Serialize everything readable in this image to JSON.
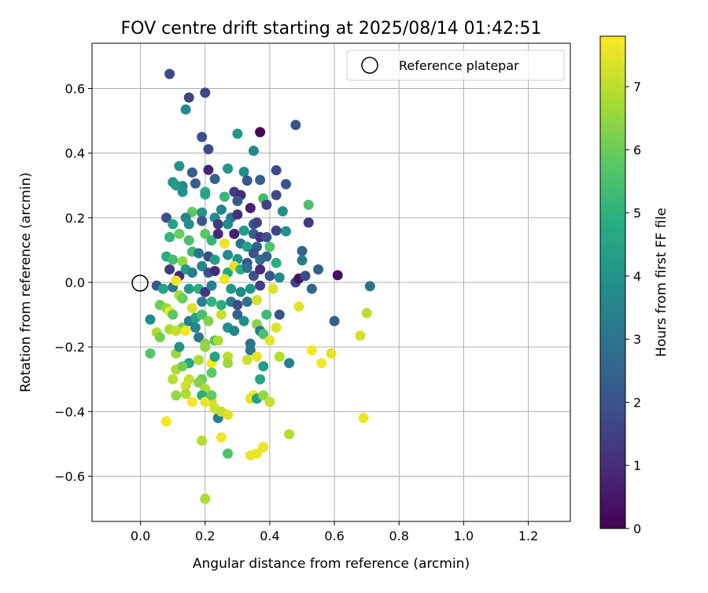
{
  "chart_data": {
    "type": "scatter",
    "title": "FOV centre drift starting at 2025/08/14 01:42:51",
    "xlabel": "Angular distance from reference (arcmin)",
    "ylabel": "Rotation from reference (arcmin)",
    "xlim": [
      -0.15,
      1.33
    ],
    "ylim": [
      -0.74,
      0.74
    ],
    "xticks": [
      0.0,
      0.2,
      0.4,
      0.6,
      0.8,
      1.0,
      1.2
    ],
    "xtick_labels": [
      "0.0",
      "0.2",
      "0.4",
      "0.6",
      "0.8",
      "1.0",
      "1.2"
    ],
    "yticks": [
      -0.6,
      -0.4,
      -0.2,
      0.0,
      0.2,
      0.4,
      0.6
    ],
    "ytick_labels": [
      "−0.6",
      "−0.4",
      "−0.2",
      "0.0",
      "0.2",
      "0.4",
      "0.6"
    ],
    "grid": true,
    "legend": {
      "placement": "top-right",
      "entries": [
        "Reference platepar"
      ]
    },
    "reference_point": {
      "x": 0.0,
      "y": 0.0,
      "label": "Reference platepar"
    },
    "colorbar": {
      "label": "Hours from first FF file",
      "range": [
        0,
        7.8
      ],
      "ticks": [
        0,
        1,
        2,
        3,
        4,
        5,
        6,
        7
      ],
      "colormap": "viridis"
    },
    "points": [
      [
        0.09,
        0.645,
        1.8
      ],
      [
        0.15,
        0.572,
        1.6
      ],
      [
        0.2,
        0.587,
        1.7
      ],
      [
        0.14,
        0.535,
        3.6
      ],
      [
        0.37,
        0.465,
        0.1
      ],
      [
        0.48,
        0.487,
        2.0
      ],
      [
        0.3,
        0.46,
        4.2
      ],
      [
        0.19,
        0.45,
        1.9
      ],
      [
        0.21,
        0.412,
        1.8
      ],
      [
        0.35,
        0.407,
        3.6
      ],
      [
        0.12,
        0.36,
        3.9
      ],
      [
        0.21,
        0.348,
        0.8
      ],
      [
        0.27,
        0.352,
        4.1
      ],
      [
        0.32,
        0.342,
        3.9
      ],
      [
        0.16,
        0.34,
        2.3
      ],
      [
        0.42,
        0.347,
        1.8
      ],
      [
        0.33,
        0.315,
        2.2
      ],
      [
        0.37,
        0.317,
        2.4
      ],
      [
        0.1,
        0.31,
        4.0
      ],
      [
        0.13,
        0.298,
        3.6
      ],
      [
        0.17,
        0.306,
        2.3
      ],
      [
        0.2,
        0.28,
        5.1
      ],
      [
        0.23,
        0.32,
        2.4
      ],
      [
        0.29,
        0.28,
        1.4
      ],
      [
        0.31,
        0.27,
        0.9
      ],
      [
        0.42,
        0.27,
        1.7
      ],
      [
        0.45,
        0.304,
        2.1
      ],
      [
        0.52,
        0.24,
        5.5
      ],
      [
        0.11,
        0.3,
        4.3
      ],
      [
        0.13,
        0.28,
        4.0
      ],
      [
        0.2,
        0.272,
        4.5
      ],
      [
        0.26,
        0.265,
        5.2
      ],
      [
        0.3,
        0.252,
        2.2
      ],
      [
        0.34,
        0.23,
        0.7
      ],
      [
        0.38,
        0.26,
        5.4
      ],
      [
        0.39,
        0.24,
        1.6
      ],
      [
        0.44,
        0.22,
        3.9
      ],
      [
        0.16,
        0.218,
        5.8
      ],
      [
        0.19,
        0.216,
        4.0
      ],
      [
        0.23,
        0.2,
        3.8
      ],
      [
        0.25,
        0.225,
        3.6
      ],
      [
        0.28,
        0.2,
        3.0
      ],
      [
        0.3,
        0.21,
        1.1
      ],
      [
        0.35,
        0.18,
        2.2
      ],
      [
        0.36,
        0.185,
        1.5
      ],
      [
        0.45,
        0.158,
        3.9
      ],
      [
        0.52,
        0.185,
        1.2
      ],
      [
        0.08,
        0.2,
        1.9
      ],
      [
        0.1,
        0.18,
        4.5
      ],
      [
        0.14,
        0.2,
        3.5
      ],
      [
        0.15,
        0.18,
        3.8
      ],
      [
        0.19,
        0.19,
        2.1
      ],
      [
        0.24,
        0.18,
        1.3
      ],
      [
        0.27,
        0.18,
        3.7
      ],
      [
        0.32,
        0.16,
        4.2
      ],
      [
        0.35,
        0.15,
        2.3
      ],
      [
        0.37,
        0.14,
        1.1
      ],
      [
        0.39,
        0.14,
        2.0
      ],
      [
        0.42,
        0.16,
        1.6
      ],
      [
        0.09,
        0.14,
        5.1
      ],
      [
        0.12,
        0.15,
        6.0
      ],
      [
        0.15,
        0.13,
        5.5
      ],
      [
        0.2,
        0.15,
        5.8
      ],
      [
        0.22,
        0.13,
        5.1
      ],
      [
        0.24,
        0.15,
        0.9
      ],
      [
        0.26,
        0.12,
        7.6
      ],
      [
        0.29,
        0.15,
        0.7
      ],
      [
        0.31,
        0.12,
        3.0
      ],
      [
        0.33,
        0.11,
        4.5
      ],
      [
        0.36,
        0.11,
        2.4
      ],
      [
        0.4,
        0.11,
        5.6
      ],
      [
        0.5,
        0.097,
        2.5
      ],
      [
        0.5,
        0.068,
        3.2
      ],
      [
        0.08,
        0.08,
        4.9
      ],
      [
        0.1,
        0.07,
        5.4
      ],
      [
        0.13,
        0.065,
        6.5
      ],
      [
        0.16,
        0.095,
        5.3
      ],
      [
        0.18,
        0.09,
        3.1
      ],
      [
        0.21,
        0.08,
        1.8
      ],
      [
        0.23,
        0.07,
        4.4
      ],
      [
        0.27,
        0.085,
        3.7
      ],
      [
        0.3,
        0.072,
        4.0
      ],
      [
        0.33,
        0.06,
        2.0
      ],
      [
        0.35,
        0.09,
        1.9
      ],
      [
        0.37,
        0.07,
        3.0
      ],
      [
        0.39,
        0.08,
        2.5
      ],
      [
        0.42,
        0.06,
        4.9
      ],
      [
        0.09,
        0.04,
        1.4
      ],
      [
        0.12,
        0.02,
        0.9
      ],
      [
        0.14,
        0.04,
        4.2
      ],
      [
        0.16,
        0.03,
        3.3
      ],
      [
        0.19,
        0.05,
        3.6
      ],
      [
        0.21,
        0.03,
        2.0
      ],
      [
        0.23,
        0.035,
        0.9
      ],
      [
        0.27,
        0.03,
        4.6
      ],
      [
        0.29,
        0.05,
        7.4
      ],
      [
        0.31,
        0.04,
        4.8
      ],
      [
        0.33,
        0.045,
        2.8
      ],
      [
        0.35,
        0.02,
        2.0
      ],
      [
        0.37,
        0.04,
        0.9
      ],
      [
        0.4,
        0.02,
        2.1
      ],
      [
        0.43,
        0.015,
        3.7
      ],
      [
        0.48,
        0.0,
        1.6
      ],
      [
        0.49,
        0.012,
        0.4
      ],
      [
        0.51,
        0.02,
        1.8
      ],
      [
        0.55,
        0.04,
        2.4
      ],
      [
        0.53,
        -0.02,
        2.6
      ],
      [
        0.61,
        0.022,
        0.3
      ],
      [
        0.71,
        -0.012,
        2.9
      ],
      [
        0.05,
        -0.01,
        2.1
      ],
      [
        0.07,
        -0.02,
        4.5
      ],
      [
        0.1,
        -0.015,
        3.1
      ],
      [
        0.11,
        0.005,
        7.6
      ],
      [
        0.15,
        -0.02,
        4.2
      ],
      [
        0.18,
        -0.02,
        4.9
      ],
      [
        0.2,
        -0.03,
        1.2
      ],
      [
        0.22,
        -0.01,
        3.4
      ],
      [
        0.26,
        0.01,
        7.6
      ],
      [
        0.28,
        -0.02,
        4.1
      ],
      [
        0.31,
        -0.03,
        3.7
      ],
      [
        0.34,
        -0.02,
        4.0
      ],
      [
        0.37,
        -0.01,
        1.5
      ],
      [
        0.41,
        -0.02,
        7.4
      ],
      [
        0.06,
        -0.07,
        6.0
      ],
      [
        0.08,
        -0.08,
        6.5
      ],
      [
        0.09,
        -0.09,
        7.7
      ],
      [
        0.12,
        -0.04,
        6.8
      ],
      [
        0.13,
        -0.05,
        6.0
      ],
      [
        0.16,
        -0.08,
        7.4
      ],
      [
        0.19,
        -0.06,
        3.4
      ],
      [
        0.22,
        -0.06,
        5.0
      ],
      [
        0.25,
        -0.07,
        4.9
      ],
      [
        0.28,
        -0.06,
        3.2
      ],
      [
        0.3,
        -0.07,
        1.8
      ],
      [
        0.33,
        -0.06,
        3.0
      ],
      [
        0.36,
        -0.055,
        7.3
      ],
      [
        0.39,
        -0.1,
        5.3
      ],
      [
        0.43,
        -0.1,
        2.0
      ],
      [
        0.49,
        -0.075,
        7.5
      ],
      [
        0.7,
        -0.095,
        7.0
      ],
      [
        0.6,
        -0.12,
        2.3
      ],
      [
        0.03,
        -0.115,
        3.7
      ],
      [
        0.1,
        -0.1,
        5.8
      ],
      [
        0.13,
        -0.14,
        6.2
      ],
      [
        0.15,
        -0.12,
        3.2
      ],
      [
        0.17,
        -0.11,
        4.5
      ],
      [
        0.19,
        -0.1,
        5.5
      ],
      [
        0.21,
        -0.12,
        6.3
      ],
      [
        0.25,
        -0.1,
        7.1
      ],
      [
        0.27,
        -0.14,
        3.9
      ],
      [
        0.3,
        -0.1,
        2.5
      ],
      [
        0.32,
        -0.12,
        3.8
      ],
      [
        0.36,
        -0.13,
        6.4
      ],
      [
        0.37,
        -0.15,
        3.2
      ],
      [
        0.42,
        -0.14,
        7.4
      ],
      [
        0.05,
        -0.155,
        6.9
      ],
      [
        0.06,
        -0.17,
        6.1
      ],
      [
        0.09,
        -0.145,
        6.8
      ],
      [
        0.11,
        -0.15,
        7.1
      ],
      [
        0.14,
        -0.15,
        7.7
      ],
      [
        0.17,
        -0.14,
        3.6
      ],
      [
        0.18,
        -0.17,
        3.0
      ],
      [
        0.2,
        -0.19,
        6.4
      ],
      [
        0.23,
        -0.18,
        5.5
      ],
      [
        0.24,
        -0.18,
        6.8
      ],
      [
        0.29,
        -0.15,
        3.5
      ],
      [
        0.34,
        -0.19,
        2.9
      ],
      [
        0.34,
        -0.21,
        3.1
      ],
      [
        0.38,
        -0.16,
        5.5
      ],
      [
        0.4,
        -0.18,
        7.5
      ],
      [
        0.53,
        -0.21,
        7.7
      ],
      [
        0.59,
        -0.22,
        7.5
      ],
      [
        0.68,
        -0.165,
        7.3
      ],
      [
        0.03,
        -0.22,
        5.7
      ],
      [
        0.11,
        -0.22,
        6.6
      ],
      [
        0.12,
        -0.2,
        4.0
      ],
      [
        0.15,
        -0.25,
        4.1
      ],
      [
        0.15,
        -0.25,
        4.6
      ],
      [
        0.18,
        -0.24,
        6.8
      ],
      [
        0.2,
        -0.2,
        6.5
      ],
      [
        0.22,
        -0.25,
        7.7
      ],
      [
        0.23,
        -0.23,
        4.5
      ],
      [
        0.27,
        -0.23,
        7.0
      ],
      [
        0.27,
        -0.25,
        6.6
      ],
      [
        0.33,
        -0.24,
        7.2
      ],
      [
        0.36,
        -0.23,
        7.5
      ],
      [
        0.38,
        -0.26,
        4.3
      ],
      [
        0.43,
        -0.23,
        6.9
      ],
      [
        0.46,
        -0.25,
        3.4
      ],
      [
        0.56,
        -0.25,
        7.7
      ],
      [
        0.11,
        -0.27,
        6.8
      ],
      [
        0.13,
        -0.26,
        6.1
      ],
      [
        0.15,
        -0.3,
        7.1
      ],
      [
        0.19,
        -0.3,
        6.0
      ],
      [
        0.22,
        -0.28,
        5.8
      ],
      [
        0.1,
        -0.3,
        7.0
      ],
      [
        0.14,
        -0.32,
        7.2
      ],
      [
        0.18,
        -0.31,
        6.3
      ],
      [
        0.2,
        -0.33,
        6.8
      ],
      [
        0.22,
        -0.37,
        7.3
      ],
      [
        0.37,
        -0.3,
        4.6
      ],
      [
        0.11,
        -0.35,
        6.5
      ],
      [
        0.14,
        -0.345,
        6.8
      ],
      [
        0.16,
        -0.37,
        7.7
      ],
      [
        0.19,
        -0.35,
        4.9
      ],
      [
        0.2,
        -0.37,
        7.6
      ],
      [
        0.22,
        -0.35,
        5.9
      ],
      [
        0.23,
        -0.39,
        7.3
      ],
      [
        0.24,
        -0.42,
        3.3
      ],
      [
        0.25,
        -0.4,
        7.1
      ],
      [
        0.27,
        -0.41,
        7.4
      ],
      [
        0.34,
        -0.36,
        7.5
      ],
      [
        0.35,
        -0.35,
        7.6
      ],
      [
        0.36,
        -0.36,
        4.4
      ],
      [
        0.38,
        -0.35,
        6.5
      ],
      [
        0.4,
        -0.37,
        7.1
      ],
      [
        0.08,
        -0.43,
        7.7
      ],
      [
        0.19,
        -0.49,
        6.9
      ],
      [
        0.25,
        -0.48,
        7.6
      ],
      [
        0.27,
        -0.53,
        5.6
      ],
      [
        0.34,
        -0.535,
        7.6
      ],
      [
        0.36,
        -0.53,
        7.6
      ],
      [
        0.38,
        -0.51,
        7.6
      ],
      [
        0.46,
        -0.47,
        6.9
      ],
      [
        0.69,
        -0.42,
        7.6
      ],
      [
        0.2,
        -0.67,
        6.8
      ]
    ]
  }
}
